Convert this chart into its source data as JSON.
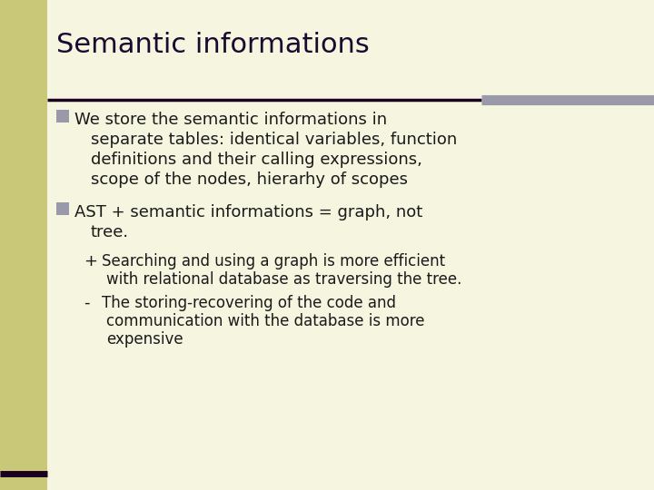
{
  "title": "Semantic informations",
  "bg_color": "#f5f5e0",
  "sidebar_color": "#c8c878",
  "title_color": "#1a0a2e",
  "title_fontsize": 22,
  "text_color": "#1a1a1a",
  "body_fontsize": 13,
  "sub_fontsize": 12,
  "bullet_color": "#9999aa",
  "line_color1": "#1a0020",
  "line_color2": "#9999aa",
  "bullet1_text": [
    "We store the semantic informations in",
    "separate tables: identical variables, function",
    "definitions and their calling expressions,",
    "scope of the nodes, hierarhy of scopes"
  ],
  "bullet2_text": [
    "AST + semantic informations = graph, not",
    "tree."
  ],
  "sub1_prefix": "+",
  "sub1_text": [
    "Searching and using a graph is more efficient",
    "with relational database as traversing the tree."
  ],
  "sub2_prefix": "-",
  "sub2_text": [
    "The storing-recovering of the code and",
    "communication with the database is more",
    "expensive"
  ]
}
